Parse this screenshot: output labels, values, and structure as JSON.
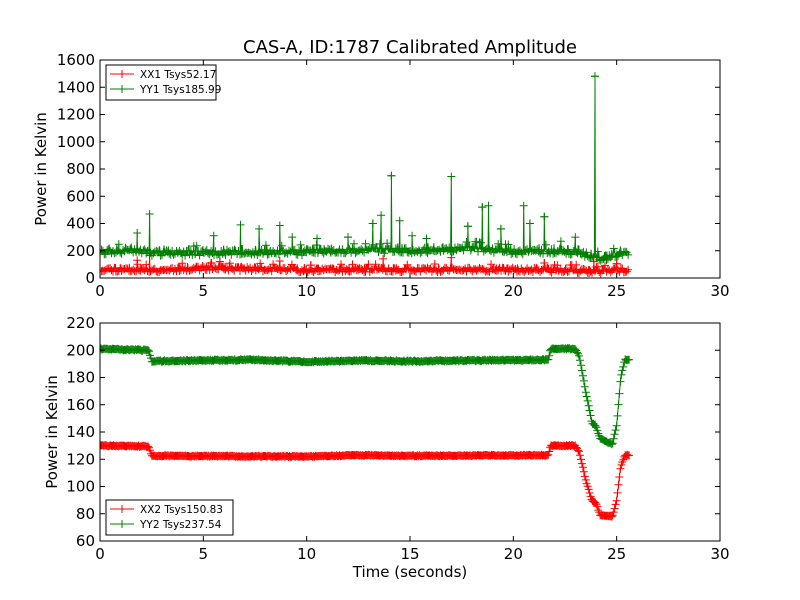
{
  "chart_data": [
    {
      "type": "line",
      "title": "CAS-A, ID:1787 Calibrated Amplitude",
      "xlabel": "",
      "ylabel": "Power in Kelvin",
      "xlim": [
        0,
        30
      ],
      "ylim": [
        0,
        1600
      ],
      "xticks": [
        0,
        5,
        10,
        15,
        20,
        25,
        30
      ],
      "yticks": [
        0,
        200,
        400,
        600,
        800,
        1000,
        1200,
        1400,
        1600
      ],
      "grid": false,
      "legend_position": "upper-left",
      "series": [
        {
          "name": "XX1 Tsys52.17",
          "color": "#ff0000",
          "marker": "+",
          "baseline": [
            [
              0,
              65
            ],
            [
              2.3,
              60
            ],
            [
              2.5,
              58
            ],
            [
              5.2,
              75
            ],
            [
              6.2,
              70
            ],
            [
              10,
              60
            ],
            [
              15,
              60
            ],
            [
              20,
              62
            ],
            [
              23,
              55
            ],
            [
              24,
              45
            ],
            [
              25,
              60
            ],
            [
              25.6,
              55
            ]
          ],
          "noise": 35,
          "spikes": [
            [
              1.8,
              130
            ],
            [
              2.4,
              165
            ],
            [
              5.4,
              110
            ],
            [
              5.8,
              120
            ],
            [
              8.7,
              125
            ],
            [
              10.2,
              95
            ],
            [
              13.7,
              140
            ],
            [
              17.0,
              150
            ],
            [
              21.5,
              110
            ],
            [
              23.9,
              120
            ],
            [
              25.0,
              105
            ]
          ]
        },
        {
          "name": "YY1 Tsys185.99",
          "color": "#007f00",
          "marker": "+",
          "baseline": [
            [
              0,
              195
            ],
            [
              2.3,
              200
            ],
            [
              2.5,
              185
            ],
            [
              10,
              190
            ],
            [
              13,
              205
            ],
            [
              15,
              200
            ],
            [
              18,
              215
            ],
            [
              20,
              195
            ],
            [
              22,
              195
            ],
            [
              23.2,
              190
            ],
            [
              23.6,
              165
            ],
            [
              24.2,
              140
            ],
            [
              24.6,
              145
            ],
            [
              25.0,
              180
            ],
            [
              25.6,
              190
            ]
          ],
          "noise": 45,
          "spikes": [
            [
              1.8,
              330
            ],
            [
              2.4,
              470
            ],
            [
              5.5,
              310
            ],
            [
              6.8,
              390
            ],
            [
              7.7,
              360
            ],
            [
              8.7,
              385
            ],
            [
              9.3,
              300
            ],
            [
              10.5,
              290
            ],
            [
              12.0,
              300
            ],
            [
              13.2,
              400
            ],
            [
              13.6,
              460
            ],
            [
              14.1,
              750
            ],
            [
              14.5,
              420
            ],
            [
              15.1,
              310
            ],
            [
              15.8,
              290
            ],
            [
              17.0,
              745
            ],
            [
              17.8,
              380
            ],
            [
              18.5,
              520
            ],
            [
              18.8,
              530
            ],
            [
              19.4,
              360
            ],
            [
              20.5,
              530
            ],
            [
              20.8,
              400
            ],
            [
              21.5,
              450
            ],
            [
              22.3,
              270
            ],
            [
              23.0,
              300
            ],
            [
              23.95,
              1480
            ]
          ]
        }
      ]
    },
    {
      "type": "line",
      "title": "",
      "xlabel": "Time (seconds)",
      "ylabel": "Power in Kelvin",
      "xlim": [
        0,
        30
      ],
      "ylim": [
        60,
        220
      ],
      "xticks": [
        0,
        5,
        10,
        15,
        20,
        25,
        30
      ],
      "yticks": [
        60,
        80,
        100,
        120,
        140,
        160,
        180,
        200,
        220
      ],
      "grid": false,
      "legend_position": "lower-left",
      "series": [
        {
          "name": "XX2 Tsys150.83",
          "color": "#ff0000",
          "marker": "+",
          "baseline": [
            [
              0,
              130
            ],
            [
              2.35,
              129.5
            ],
            [
              2.5,
              122.5
            ],
            [
              10,
              122
            ],
            [
              12.5,
              123
            ],
            [
              15,
              122.5
            ],
            [
              21.7,
              123
            ],
            [
              21.8,
              130
            ],
            [
              23.0,
              130
            ],
            [
              23.2,
              125
            ],
            [
              23.5,
              105
            ],
            [
              23.8,
              90
            ],
            [
              24.0,
              88
            ],
            [
              24.2,
              79
            ],
            [
              24.8,
              78
            ],
            [
              25.0,
              90
            ],
            [
              25.2,
              115
            ],
            [
              25.4,
              123
            ],
            [
              25.6,
              123
            ]
          ],
          "noise": 0.8,
          "spikes": []
        },
        {
          "name": "YY2 Tsys237.54",
          "color": "#007f00",
          "marker": "+",
          "baseline": [
            [
              0,
              201
            ],
            [
              2.35,
              200
            ],
            [
              2.5,
              192
            ],
            [
              7.5,
              193
            ],
            [
              10,
              191.5
            ],
            [
              12.5,
              192.5
            ],
            [
              15,
              192
            ],
            [
              21.7,
              193
            ],
            [
              21.8,
              201
            ],
            [
              23.0,
              201
            ],
            [
              23.2,
              195
            ],
            [
              23.5,
              170
            ],
            [
              23.8,
              147
            ],
            [
              24.0,
              144
            ],
            [
              24.2,
              135
            ],
            [
              24.8,
              131
            ],
            [
              25.0,
              145
            ],
            [
              25.2,
              180
            ],
            [
              25.4,
              193
            ],
            [
              25.6,
              193
            ]
          ],
          "noise": 1.0,
          "spikes": []
        }
      ]
    }
  ]
}
